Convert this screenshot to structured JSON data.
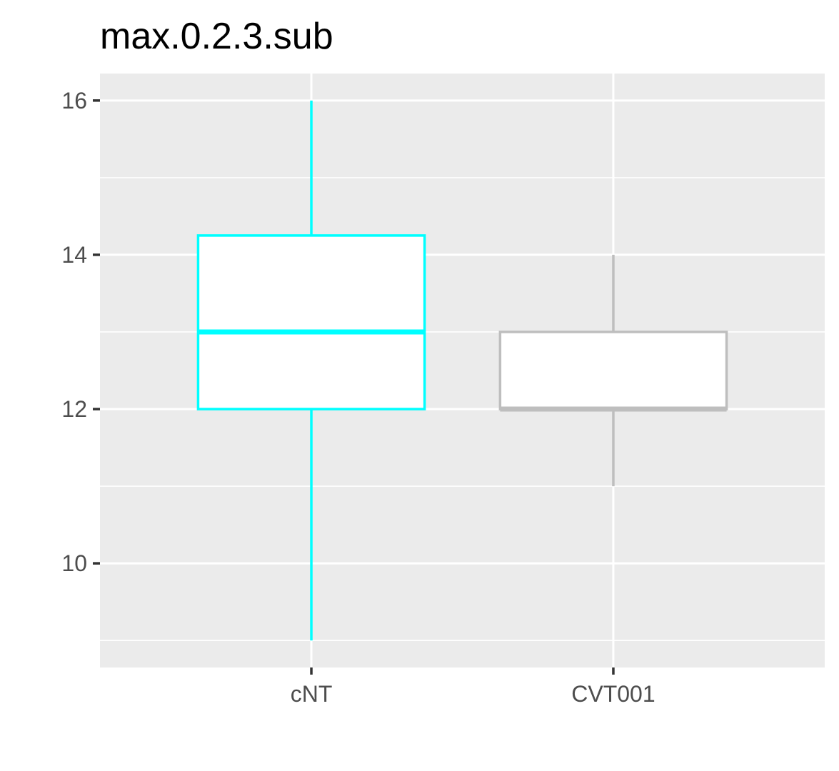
{
  "chart_data": {
    "type": "boxplot",
    "title": "max.0.2.3.sub",
    "xlabel": "",
    "ylabel": "",
    "categories": [
      "cNT",
      "CVT001"
    ],
    "boxes": [
      {
        "category": "cNT",
        "min": 9,
        "q1": 12,
        "median": 13,
        "q3": 14.25,
        "max": 16,
        "color": "#00FFFF"
      },
      {
        "category": "CVT001",
        "min": 11,
        "q1": 12,
        "median": 12,
        "q3": 13,
        "max": 14,
        "color": "#BEBEBE"
      }
    ],
    "ylim": [
      8.65,
      16.35
    ],
    "yticks": [
      10,
      12,
      14,
      16
    ],
    "yminor": [
      9,
      11,
      13,
      15
    ],
    "grid": true,
    "legend": "none",
    "colors": {
      "panel_bg": "#EBEBEB",
      "grid": "#FFFFFF",
      "box_fill": "#FFFFFF",
      "tick_text": "#4D4D4D",
      "tick_mark": "#333333"
    }
  }
}
